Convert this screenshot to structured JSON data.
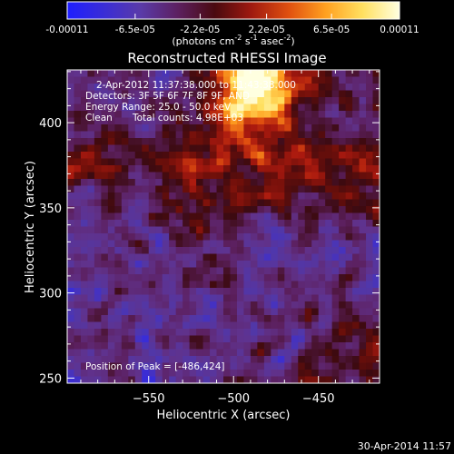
{
  "colorbar": {
    "tick_labels": [
      "-0.00011",
      "-6.5e-05",
      "-2.2e-05",
      "2.2e-05",
      "6.5e-05",
      "0.00011"
    ],
    "tick_values": [
      -0.00011,
      -6.5e-05,
      -2.2e-05,
      2.2e-05,
      6.5e-05,
      0.00011
    ],
    "range": [
      -0.00011,
      0.00011
    ],
    "unit_base": "(photons cm",
    "unit_sup1": "-2",
    "unit_mid": " s",
    "unit_sup2": "-1",
    "unit_mid2": " asec",
    "unit_sup3": "-2",
    "unit_end": ")",
    "colors": [
      "#1e1eff",
      "#3a2dd6",
      "#5a3aa8",
      "#5c2060",
      "#4a0a10",
      "#a01a10",
      "#e05010",
      "#ffa020",
      "#ffe060",
      "#ffffe0"
    ]
  },
  "chart_data": {
    "type": "heatmap",
    "title": "Reconstructed RHESSI Image",
    "xlabel": "Heliocentric X (arcsec)",
    "ylabel": "Heliocentric Y (arcsec)",
    "xlim": [
      -598,
      -414
    ],
    "ylim": [
      247,
      431
    ],
    "x_ticks": [
      -550,
      -500,
      -450
    ],
    "x_tick_labels": [
      "−550",
      "−500",
      "−450"
    ],
    "y_ticks": [
      250,
      300,
      350,
      400
    ],
    "y_tick_labels": [
      "250",
      "300",
      "350",
      "400"
    ],
    "peak_position": [
      -486,
      424
    ],
    "colormap": "rhessi (blue→purple→dark red→red→orange→yellow→white)",
    "annotations": {
      "time": "2-Apr-2012 11:37:38.000 to 11:43:38.000",
      "detectors": "Detectors: 3F 5F 6F 7F 8F 9F, AND",
      "energy": "Energy Range: 25.0 - 50.0 keV",
      "algorithm": "Clean",
      "counts": "Total counts: 4.98E+03",
      "peak": "Position of Peak = [-486,424]"
    }
  },
  "footer": {
    "timestamp": "30-Apr-2014 11:57"
  }
}
